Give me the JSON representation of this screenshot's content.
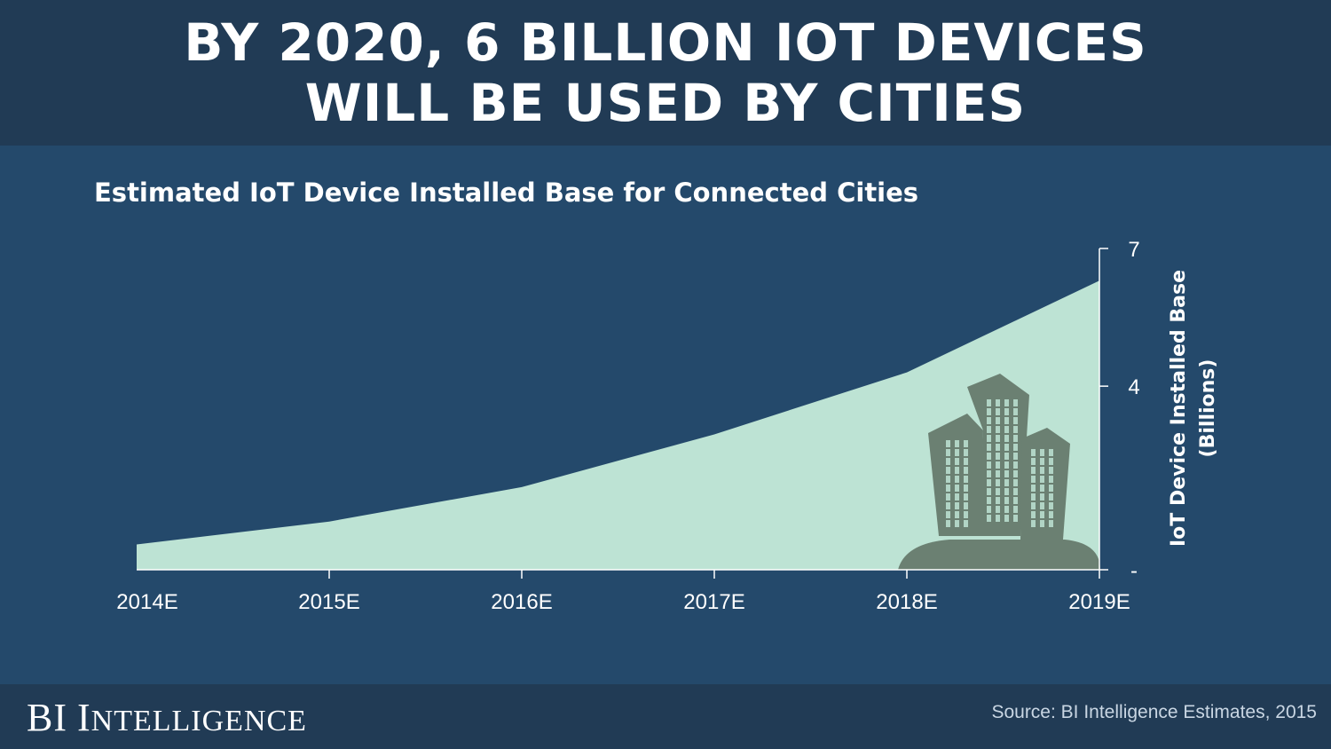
{
  "header": {
    "line1": "BY 2020, 6 BILLION IOT DEVICES",
    "line2": "WILL BE USED BY CITIES"
  },
  "colors": {
    "background": "#24496b",
    "header_band": "#213b55",
    "area_fill": "#bde3d4",
    "buildings": "#6b8072",
    "text": "#ffffff"
  },
  "chart_data": {
    "type": "area",
    "title": "Estimated IoT Device Installed Base for Connected Cities",
    "categories": [
      "2014E",
      "2015E",
      "2016E",
      "2017E",
      "2018E",
      "2019E"
    ],
    "values": [
      0.55,
      1.05,
      1.8,
      2.95,
      4.3,
      6.3
    ],
    "ylabel_line1": "IoT Device Installed Base",
    "ylabel_line2": "(Billions)",
    "y_ticks": [
      {
        "value": 0,
        "label": "-"
      },
      {
        "value": 4,
        "label": "4"
      },
      {
        "value": 7,
        "label": "7"
      }
    ],
    "ylim": [
      0,
      7
    ],
    "y_axis_side": "right",
    "grid": false,
    "decoration": "city-buildings-icon"
  },
  "footer": {
    "brand_b": "B",
    "brand_i": "I",
    "brand_word_initial": "I",
    "brand_word_rest": "NTELLIGENCE",
    "source": "Source: BI Intelligence Estimates, 2015"
  }
}
